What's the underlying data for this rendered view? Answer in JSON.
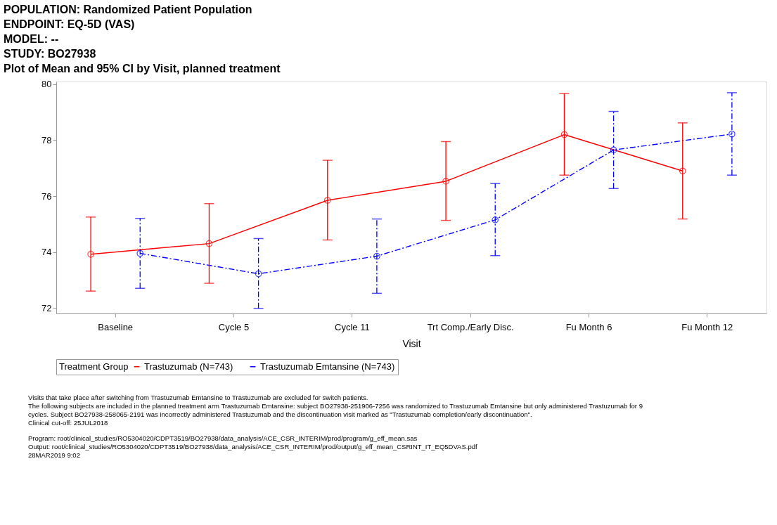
{
  "chart_data": {
    "type": "line",
    "title": "POPULATION: Randomized Patient Population\nENDPOINT: EQ-5D (VAS)\nMODEL: --\nSTUDY: BO27938\nPlot of Mean and 95% CI by Visit, planned treatment",
    "xlabel": "Visit",
    "legend_title": "Treatment Group",
    "legend": "bottom",
    "marker": "circle",
    "grid": false,
    "categories": [
      "Baseline",
      "Cycle 5",
      "Cycle 11",
      "Trt Comp./Early Disc.",
      "Fu Month 6",
      "Fu Month 12"
    ],
    "ylim": [
      71.8,
      80.1
    ],
    "yticks": [
      72,
      74,
      76,
      78,
      80
    ],
    "series": [
      {
        "name": "Trastuzumab (N=743)",
        "color": "#ff0000",
        "line_style": "solid",
        "values": [
          73.92,
          74.3,
          75.85,
          76.53,
          78.2,
          76.9
        ],
        "errors": [
          [
            72.6,
            75.25
          ],
          [
            72.88,
            75.73
          ],
          [
            74.43,
            77.28
          ],
          [
            75.13,
            77.95
          ],
          [
            76.75,
            79.67
          ],
          [
            75.18,
            78.62
          ]
        ]
      },
      {
        "name": "Trastuzumab Emtansine (N=743)",
        "color": "#0000ff",
        "line_style": "dashed",
        "values": [
          73.95,
          73.22,
          73.85,
          75.15,
          77.65,
          78.22
        ],
        "errors": [
          [
            72.7,
            75.2
          ],
          [
            71.98,
            74.48
          ],
          [
            72.52,
            75.18
          ],
          [
            73.87,
            76.45
          ],
          [
            76.27,
            79.03
          ],
          [
            76.75,
            79.7
          ]
        ]
      }
    ],
    "annotations": [
      "Visits that take place after switching from Trastuzumab Emtansine to Trastuzumab are excluded for switch patients.",
      "The following subjects are included in the planned treatment arm Trastuzumab Emtansine: subject BO27938-251906-7256 was randomized to Trastuzumab Emtansine but only administered Trastuzumab for 9",
      "cycles. Subject BO27938-258065-2191 was incorrectly administered Trastuzumab and the discontinuation visit marked as \"Trastuzumab completion/early discontinuation\".",
      "Clinical cut-off: 25JUL2018",
      "Program: root/clinical_studies/RO5304020/CDPT3519/BO27938/data_analysis/ACE_CSR_INTERIM/prod/program/g_eff_mean.sas",
      "Output: root/clinical_studies/RO5304020/CDPT3519/BO27938/data_analysis/ACE_CSR_INTERIM/prod/output/g_eff_mean_CSRINT_IT_EQ5DVAS.pdf",
      "28MAR2019 9:02"
    ]
  }
}
